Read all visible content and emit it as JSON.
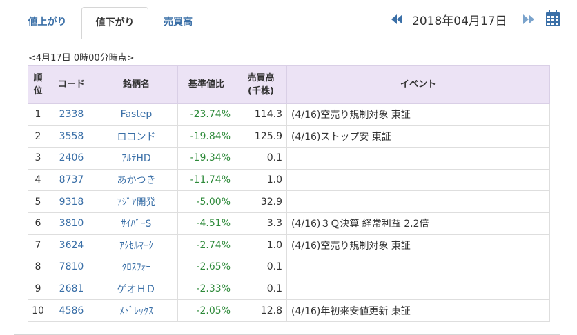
{
  "tabs": [
    {
      "label": "値上がり",
      "active": false
    },
    {
      "label": "値下がり",
      "active": true
    },
    {
      "label": "売買高",
      "active": false
    }
  ],
  "date": {
    "text": "2018年04月17日",
    "prev_icon": "double-left-icon",
    "next_icon": "double-right-icon",
    "calendar_icon": "calendar-icon"
  },
  "colors": {
    "accent": "#3a6fa7",
    "header_bg": "#ece3f5",
    "negative": "#2e8a3a"
  },
  "table": {
    "timestamp": "<4月17日 0時00分時点>",
    "headers": {
      "rank": [
        "順",
        "位"
      ],
      "code": "コード",
      "name": "銘柄名",
      "change": "基準値比",
      "volume": [
        "売買高",
        "(千株)"
      ],
      "event": "イベント"
    },
    "rows": [
      {
        "rank": "1",
        "code": "2338",
        "name": "Fastep",
        "change": "-23.74%",
        "volume": "114.3",
        "event": "(4/16)空売り規制対象 東証"
      },
      {
        "rank": "2",
        "code": "3558",
        "name": "ロコンド",
        "change": "-19.84%",
        "volume": "125.9",
        "event": "(4/16)ストップ安 東証"
      },
      {
        "rank": "3",
        "code": "2406",
        "name": "ｱﾙﾃHD",
        "change": "-19.34%",
        "volume": "0.1",
        "event": ""
      },
      {
        "rank": "4",
        "code": "8737",
        "name": "あかつき",
        "change": "-11.74%",
        "volume": "1.0",
        "event": ""
      },
      {
        "rank": "5",
        "code": "9318",
        "name": "ｱｼﾞｱ開発",
        "change": "-5.00%",
        "volume": "32.9",
        "event": ""
      },
      {
        "rank": "6",
        "code": "3810",
        "name": "ｻｲﾊﾞｰS",
        "change": "-4.51%",
        "volume": "3.3",
        "event": "(4/16)３Ｑ決算 経常利益 2.2倍"
      },
      {
        "rank": "7",
        "code": "3624",
        "name": "ｱｸｾﾙﾏｰｸ",
        "change": "-2.74%",
        "volume": "1.0",
        "event": "(4/16)空売り規制対象 東証"
      },
      {
        "rank": "8",
        "code": "7810",
        "name": "ｸﾛｽﾌｫｰ",
        "change": "-2.65%",
        "volume": "0.1",
        "event": ""
      },
      {
        "rank": "9",
        "code": "2681",
        "name": "ゲオＨＤ",
        "change": "-2.33%",
        "volume": "0.1",
        "event": ""
      },
      {
        "rank": "10",
        "code": "4586",
        "name": "ﾒﾄﾞﾚｯｸｽ",
        "change": "-2.05%",
        "volume": "12.8",
        "event": "(4/16)年初来安値更新 東証"
      }
    ]
  }
}
